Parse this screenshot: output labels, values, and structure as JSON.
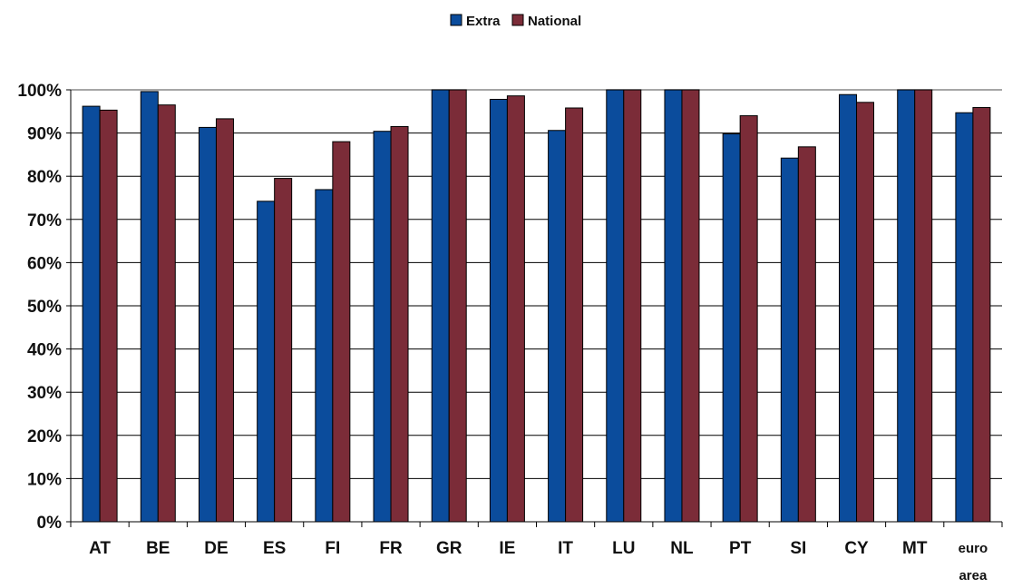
{
  "chart_data": {
    "type": "bar",
    "categories": [
      "AT",
      "BE",
      "DE",
      "ES",
      "FI",
      "FR",
      "GR",
      "IE",
      "IT",
      "LU",
      "NL",
      "PT",
      "SI",
      "CY",
      "MT",
      "euro area"
    ],
    "series": [
      {
        "name": "Extra",
        "color": "#0B4C9C",
        "values": [
          96.2,
          99.6,
          91.3,
          74.2,
          76.9,
          90.4,
          100,
          97.8,
          90.6,
          100,
          100,
          89.8,
          84.2,
          98.9,
          100,
          94.7
        ]
      },
      {
        "name": "National",
        "color": "#7B2C38",
        "values": [
          95.3,
          96.5,
          93.3,
          79.5,
          88.0,
          91.5,
          100,
          98.6,
          95.8,
          100,
          100,
          94.0,
          86.8,
          97.1,
          100,
          95.9
        ]
      }
    ],
    "yticks": [
      "0%",
      "10%",
      "20%",
      "30%",
      "40%",
      "50%",
      "60%",
      "70%",
      "80%",
      "90%",
      "100%"
    ],
    "ylim": [
      0,
      100
    ],
    "grid": true,
    "legend_position": "top-center"
  }
}
